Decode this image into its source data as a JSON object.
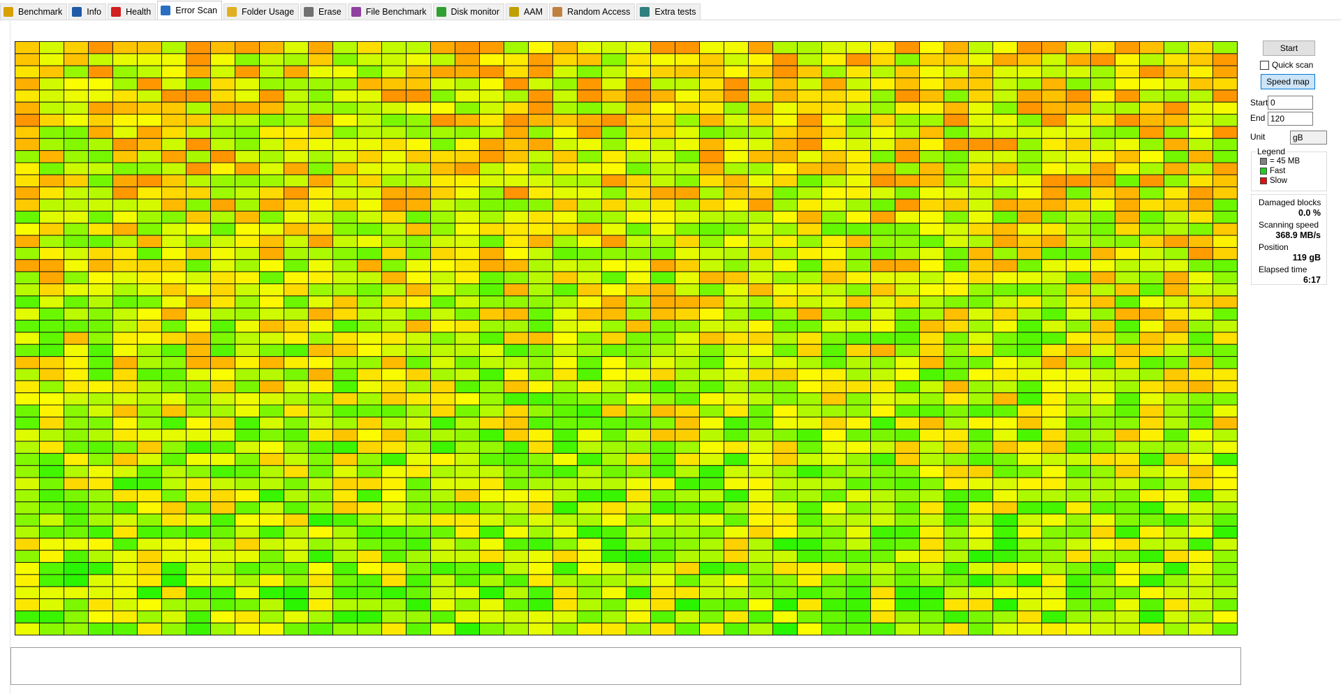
{
  "tabs": [
    {
      "label": "Benchmark",
      "icon": "#d8a000"
    },
    {
      "label": "Info",
      "icon": "#1e5aa8"
    },
    {
      "label": "Health",
      "icon": "#d02020"
    },
    {
      "label": "Error Scan",
      "icon": "#2a6fc0"
    },
    {
      "label": "Folder Usage",
      "icon": "#e0b020"
    },
    {
      "label": "Erase",
      "icon": "#707070"
    },
    {
      "label": "File Benchmark",
      "icon": "#9040a0"
    },
    {
      "label": "Disk monitor",
      "icon": "#30a030"
    },
    {
      "label": "AAM",
      "icon": "#c0a000"
    },
    {
      "label": "Random Access",
      "icon": "#c08040"
    },
    {
      "label": "Extra tests",
      "icon": "#308080"
    }
  ],
  "active_tab": 3,
  "controls": {
    "start_button": "Start",
    "quick_scan": "Quick scan",
    "speed_map": "Speed map",
    "start_label": "Start",
    "start_value": "0",
    "end_label": "End",
    "end_value": "120",
    "unit_label": "Unit",
    "unit_value": "gB"
  },
  "legend": {
    "title": "Legend",
    "items": [
      {
        "label": "= 45 MB",
        "color": "#808080"
      },
      {
        "label": "Fast",
        "color": "#22cc22"
      },
      {
        "label": "Slow",
        "color": "#dd1111"
      }
    ]
  },
  "stats": [
    {
      "label": "Damaged blocks",
      "value": "0.0 %"
    },
    {
      "label": "Scanning speed",
      "value": "368.9 MB/s"
    },
    {
      "label": "Position",
      "value": "119 gB"
    },
    {
      "label": "Elapsed time",
      "value": "6:17"
    }
  ]
}
